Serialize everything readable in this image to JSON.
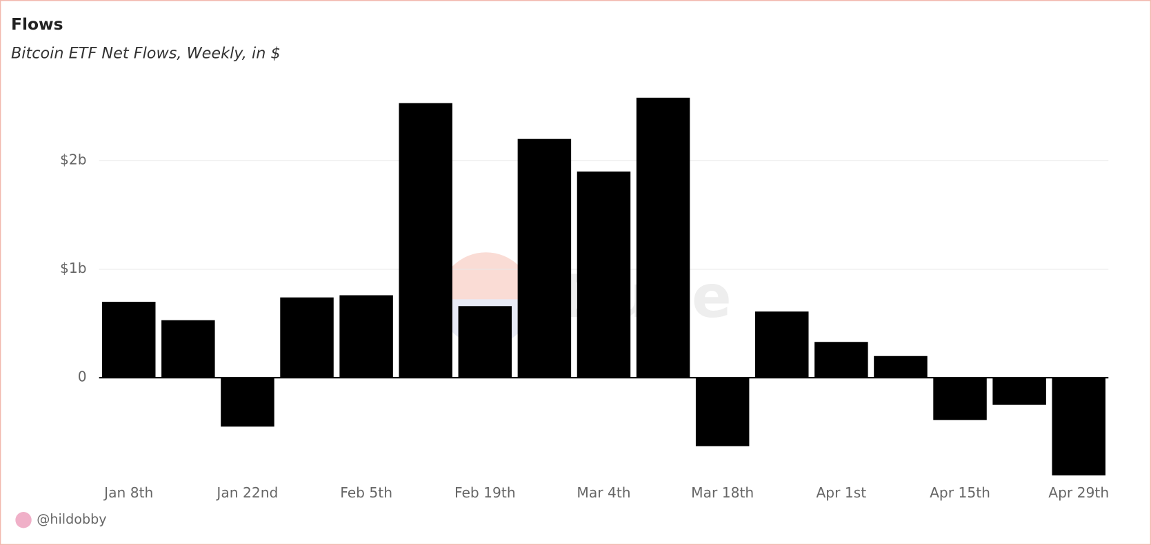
{
  "chart_data": {
    "type": "bar",
    "title": "Flows",
    "subtitle": "Bitcoin ETF Net Flows, Weekly, in $",
    "categories": [
      "Jan 8th",
      null,
      "Jan 22nd",
      null,
      "Feb 5th",
      null,
      "Feb 19th",
      null,
      "Mar 4th",
      null,
      "Mar 18th",
      null,
      "Apr 1st",
      null,
      "Apr 15th",
      null,
      "Apr 29th"
    ],
    "values": [
      700000000,
      530000000,
      -450000000,
      740000000,
      760000000,
      2530000000,
      660000000,
      2200000000,
      1900000000,
      2580000000,
      -630000000,
      610000000,
      330000000,
      200000000,
      -390000000,
      -250000000,
      -900000000
    ],
    "color": "#000000",
    "ylim": [
      -1000000000,
      2700000000
    ],
    "yticks": [
      0,
      {
        "value": 1000000000,
        "label": "$1b"
      },
      {
        "value": 2000000000,
        "label": "$2b"
      }
    ],
    "grid": true,
    "author": "@hildobby",
    "watermark": "Dune"
  }
}
